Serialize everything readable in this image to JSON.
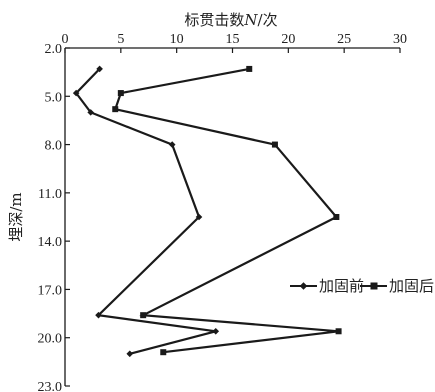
{
  "chart_data": {
    "type": "line",
    "title": "",
    "x_axis": {
      "label_prefix": "标贯击数",
      "label_var": "N",
      "label_suffix": "/次",
      "position": "top",
      "min": 0,
      "max": 30,
      "ticks": [
        0,
        5,
        10,
        15,
        20,
        25,
        30
      ]
    },
    "y_axis": {
      "label": "埋深/m",
      "inverted": true,
      "min": 2.0,
      "max": 23.0,
      "ticks": [
        "2.0",
        "5.0",
        "8.0",
        "11.0",
        "14.0",
        "17.0",
        "20.0",
        "23.0"
      ]
    },
    "grid": false,
    "legend_position": "right-middle",
    "series": [
      {
        "name": "加固前",
        "marker": "diamond",
        "color": "#1a1a1a",
        "points": [
          {
            "x": 3.1,
            "depth": 3.3
          },
          {
            "x": 1.0,
            "depth": 4.8
          },
          {
            "x": 2.3,
            "depth": 6.0
          },
          {
            "x": 9.6,
            "depth": 8.0
          },
          {
            "x": 12.0,
            "depth": 12.5
          },
          {
            "x": 3.0,
            "depth": 18.6
          },
          {
            "x": 13.5,
            "depth": 19.6
          },
          {
            "x": 5.8,
            "depth": 21.0
          }
        ]
      },
      {
        "name": "加固后",
        "marker": "square",
        "color": "#1a1a1a",
        "points": [
          {
            "x": 16.5,
            "depth": 3.3
          },
          {
            "x": 5.0,
            "depth": 4.8
          },
          {
            "x": 4.5,
            "depth": 5.8
          },
          {
            "x": 18.8,
            "depth": 8.0
          },
          {
            "x": 24.3,
            "depth": 12.5
          },
          {
            "x": 7.0,
            "depth": 18.6
          },
          {
            "x": 24.5,
            "depth": 19.6
          },
          {
            "x": 8.8,
            "depth": 20.9
          }
        ]
      }
    ]
  }
}
